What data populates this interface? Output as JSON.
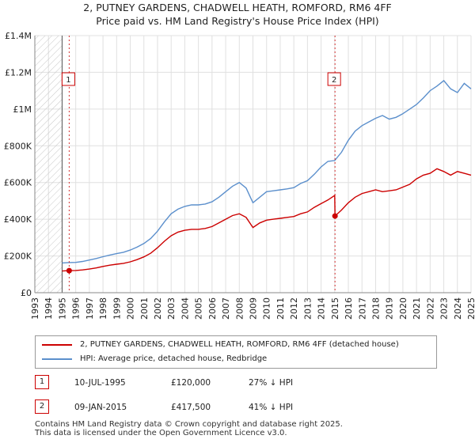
{
  "title_line1": "2, PUTNEY GARDENS, CHADWELL HEATH, ROMFORD, RM6 4FF",
  "title_line2": "Price paid vs. HM Land Registry's House Price Index (HPI)",
  "colors": {
    "property": "#cc0000",
    "hpi": "#5b8fcc",
    "marker_border": "#cc0000",
    "grid": "#e0e0e0",
    "hatch": "#bbbbbb"
  },
  "chart_data": {
    "type": "line",
    "title": "2, PUTNEY GARDENS, CHADWELL HEATH, ROMFORD, RM6 4FF — Price paid vs. HM Land Registry's House Price Index (HPI)",
    "xlim": [
      1993,
      2025
    ],
    "ylim": [
      0,
      1400000
    ],
    "y_ticks": [
      0,
      200000,
      400000,
      600000,
      800000,
      1000000,
      1200000,
      1400000
    ],
    "y_tick_labels": [
      "£0",
      "£200K",
      "£400K",
      "£600K",
      "£800K",
      "£1M",
      "£1.2M",
      "£1.4M"
    ],
    "x_ticks": [
      1993,
      1994,
      1995,
      1996,
      1997,
      1998,
      1999,
      2000,
      2001,
      2002,
      2003,
      2004,
      2005,
      2006,
      2007,
      2008,
      2009,
      2010,
      2011,
      2012,
      2013,
      2014,
      2015,
      2016,
      2017,
      2018,
      2019,
      2020,
      2021,
      2022,
      2023,
      2024,
      2025
    ],
    "hatched_until": 1995.0,
    "series": [
      {
        "name": "2, PUTNEY GARDENS, CHADWELL HEATH, ROMFORD, RM6 4FF (detached house)",
        "x": [
          1995.0,
          1995.52,
          1996,
          1996.5,
          1997,
          1997.5,
          1998,
          1998.5,
          1999,
          1999.5,
          2000,
          2000.5,
          2001,
          2001.5,
          2002,
          2002.5,
          2003,
          2003.5,
          2004,
          2004.5,
          2005,
          2005.5,
          2006,
          2006.5,
          2007,
          2007.5,
          2008,
          2008.5,
          2009,
          2009.5,
          2010,
          2010.5,
          2011,
          2011.5,
          2012,
          2012.5,
          2013,
          2013.5,
          2014,
          2014.5,
          2015.0,
          2015.02,
          2015.5,
          2016,
          2016.5,
          2017,
          2017.5,
          2018,
          2018.5,
          2019,
          2019.5,
          2020,
          2020.5,
          2021,
          2021.5,
          2022,
          2022.5,
          2023,
          2023.5,
          2024,
          2024.5,
          2025
        ],
        "values": [
          118000,
          120000,
          121000,
          124000,
          129000,
          135000,
          143000,
          150000,
          155000,
          160000,
          168000,
          180000,
          195000,
          215000,
          245000,
          280000,
          310000,
          330000,
          340000,
          345000,
          345000,
          350000,
          360000,
          380000,
          400000,
          420000,
          430000,
          410000,
          355000,
          380000,
          395000,
          400000,
          405000,
          410000,
          415000,
          430000,
          440000,
          465000,
          485000,
          505000,
          530000,
          417500,
          450000,
          490000,
          520000,
          540000,
          550000,
          560000,
          550000,
          555000,
          560000,
          575000,
          590000,
          620000,
          640000,
          650000,
          675000,
          660000,
          640000,
          660000,
          650000,
          640000
        ]
      },
      {
        "name": "HPI: Average price, detached house, Redbridge",
        "x": [
          1995.0,
          1995.5,
          1996,
          1996.5,
          1997,
          1997.5,
          1998,
          1998.5,
          1999,
          1999.5,
          2000,
          2000.5,
          2001,
          2001.5,
          2002,
          2002.5,
          2003,
          2003.5,
          2004,
          2004.5,
          2005,
          2005.5,
          2006,
          2006.5,
          2007,
          2007.5,
          2008,
          2008.5,
          2009,
          2009.5,
          2010,
          2010.5,
          2011,
          2011.5,
          2012,
          2012.5,
          2013,
          2013.5,
          2014,
          2014.5,
          2015,
          2015.5,
          2016,
          2016.5,
          2017,
          2017.5,
          2018,
          2018.5,
          2019,
          2019.5,
          2020,
          2020.5,
          2021,
          2021.5,
          2022,
          2022.5,
          2023,
          2023.5,
          2024,
          2024.5,
          2025
        ],
        "values": [
          162000,
          164000,
          165000,
          170000,
          178000,
          186000,
          196000,
          205000,
          213000,
          220000,
          232000,
          248000,
          268000,
          295000,
          335000,
          385000,
          430000,
          455000,
          470000,
          478000,
          478000,
          483000,
          495000,
          520000,
          550000,
          580000,
          600000,
          570000,
          490000,
          520000,
          550000,
          555000,
          560000,
          565000,
          572000,
          595000,
          610000,
          645000,
          685000,
          715000,
          720000,
          765000,
          830000,
          880000,
          910000,
          930000,
          950000,
          965000,
          945000,
          955000,
          975000,
          1000000,
          1025000,
          1060000,
          1100000,
          1125000,
          1155000,
          1110000,
          1090000,
          1140000,
          1110000
        ]
      }
    ],
    "annotations": [
      {
        "label": "1",
        "x": 1995.52,
        "y": 120000
      },
      {
        "label": "2",
        "x": 2015.02,
        "y": 417500
      }
    ]
  },
  "legend": {
    "property_label": "2, PUTNEY GARDENS, CHADWELL HEATH, ROMFORD, RM6 4FF (detached house)",
    "hpi_label": "HPI: Average price, detached house, Redbridge"
  },
  "sales": [
    {
      "marker": "1",
      "date": "10-JUL-1995",
      "price": "£120,000",
      "hpi_diff": "27% ↓ HPI"
    },
    {
      "marker": "2",
      "date": "09-JAN-2015",
      "price": "£417,500",
      "hpi_diff": "41% ↓ HPI"
    }
  ],
  "footer_line1": "Contains HM Land Registry data © Crown copyright and database right 2025.",
  "footer_line2": "This data is licensed under the Open Government Licence v3.0."
}
